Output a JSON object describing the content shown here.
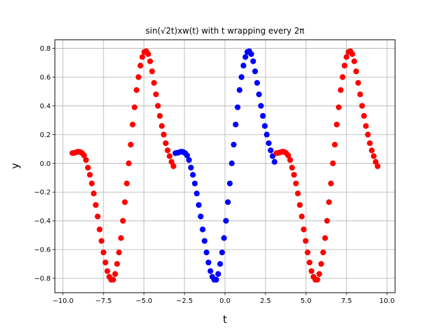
{
  "chart_data": {
    "type": "scatter",
    "title": "sin(√2t)xw(t) with t wrapping every 2π",
    "xlabel": "t",
    "ylabel": "y",
    "xlim": [
      -10.5,
      10.5
    ],
    "ylim": [
      -0.9,
      0.86
    ],
    "xticks": [
      -10.0,
      -7.5,
      -5.0,
      -2.5,
      0.0,
      2.5,
      5.0,
      7.5,
      10.0
    ],
    "xtick_labels": [
      "−10.0",
      "−7.5",
      "−5.0",
      "−2.5",
      "0.0",
      "2.5",
      "5.0",
      "7.5",
      "10.0"
    ],
    "yticks": [
      -0.8,
      -0.6,
      -0.4,
      -0.2,
      0.0,
      0.2,
      0.4,
      0.6,
      0.8
    ],
    "ytick_labels": [
      "−0.8",
      "−0.6",
      "−0.4",
      "−0.2",
      "0.0",
      "0.2",
      "0.4",
      "0.6",
      "0.8"
    ],
    "grid": true,
    "series": [
      {
        "color": "#ff0000",
        "x": [
          -9.42,
          -9.3,
          -9.18,
          -9.06,
          -8.94,
          -8.82,
          -8.7,
          -8.58,
          -8.46,
          -8.34,
          -8.22,
          -8.1,
          -7.98,
          -7.86,
          -7.74,
          -7.62,
          -7.5,
          -7.38,
          -7.26,
          -7.14,
          -7.02,
          -6.9,
          -6.78,
          -6.66,
          -6.54,
          -6.42,
          -6.3,
          -6.18,
          -6.06,
          -5.94,
          -5.82,
          -5.7,
          -5.58,
          -5.46,
          -5.34,
          -5.22,
          -5.1,
          -4.98,
          -4.86,
          -4.74,
          -4.62,
          -4.5,
          -4.38,
          -4.26,
          -4.14,
          -4.02,
          -3.9,
          -3.78,
          -3.66,
          -3.54,
          -3.42,
          -3.3,
          -3.18
        ],
        "y": [
          0.071,
          0.073,
          0.077,
          0.081,
          0.079,
          0.071,
          0.055,
          0.023,
          -0.03,
          -0.08,
          -0.14,
          -0.21,
          -0.29,
          -0.37,
          -0.46,
          -0.54,
          -0.62,
          -0.69,
          -0.75,
          -0.79,
          -0.81,
          -0.81,
          -0.77,
          -0.7,
          -0.62,
          -0.52,
          -0.4,
          -0.27,
          -0.14,
          0.0,
          0.13,
          0.27,
          0.39,
          0.51,
          0.6,
          0.68,
          0.74,
          0.775,
          0.78,
          0.76,
          0.71,
          0.64,
          0.56,
          0.48,
          0.4,
          0.33,
          0.26,
          0.2,
          0.14,
          0.09,
          0.05,
          0.01,
          -0.02
        ]
      },
      {
        "color": "#0000ff",
        "x": [
          -3.06,
          -2.94,
          -2.82,
          -2.7,
          -2.58,
          -2.46,
          -2.34,
          -2.22,
          -2.1,
          -1.98,
          -1.86,
          -1.74,
          -1.62,
          -1.5,
          -1.38,
          -1.26,
          -1.14,
          -1.02,
          -0.9,
          -0.78,
          -0.66,
          -0.54,
          -0.42,
          -0.3,
          -0.18,
          -0.06,
          0.06,
          0.18,
          0.3,
          0.42,
          0.54,
          0.66,
          0.78,
          0.9,
          1.02,
          1.14,
          1.26,
          1.38,
          1.5,
          1.62,
          1.74,
          1.86,
          1.98,
          2.1,
          2.22,
          2.34,
          2.46,
          2.58,
          2.7,
          2.82,
          2.94,
          3.06
        ],
        "y": [
          0.071,
          0.073,
          0.077,
          0.081,
          0.079,
          0.071,
          0.055,
          0.023,
          -0.03,
          -0.08,
          -0.14,
          -0.21,
          -0.29,
          -0.37,
          -0.46,
          -0.54,
          -0.62,
          -0.69,
          -0.75,
          -0.79,
          -0.81,
          -0.81,
          -0.77,
          -0.7,
          -0.62,
          -0.52,
          -0.4,
          -0.27,
          -0.14,
          0.0,
          0.13,
          0.27,
          0.39,
          0.51,
          0.6,
          0.68,
          0.74,
          0.775,
          0.78,
          0.76,
          0.71,
          0.64,
          0.56,
          0.48,
          0.4,
          0.33,
          0.26,
          0.2,
          0.14,
          0.09,
          0.05,
          0.01
        ]
      },
      {
        "color": "#ff0000",
        "x": [
          3.18,
          3.3,
          3.42,
          3.54,
          3.66,
          3.78,
          3.9,
          4.02,
          4.14,
          4.26,
          4.38,
          4.5,
          4.62,
          4.74,
          4.86,
          4.98,
          5.1,
          5.22,
          5.34,
          5.46,
          5.58,
          5.7,
          5.82,
          5.94,
          6.06,
          6.18,
          6.3,
          6.42,
          6.54,
          6.66,
          6.78,
          6.9,
          7.02,
          7.14,
          7.26,
          7.38,
          7.5,
          7.62,
          7.74,
          7.86,
          7.98,
          8.1,
          8.22,
          8.34,
          8.46,
          8.58,
          8.7,
          8.82,
          8.94,
          9.06,
          9.18,
          9.3,
          9.42
        ],
        "y": [
          0.071,
          0.073,
          0.077,
          0.081,
          0.079,
          0.071,
          0.055,
          0.023,
          -0.03,
          -0.08,
          -0.14,
          -0.21,
          -0.29,
          -0.37,
          -0.46,
          -0.54,
          -0.62,
          -0.69,
          -0.75,
          -0.79,
          -0.81,
          -0.81,
          -0.77,
          -0.7,
          -0.62,
          -0.52,
          -0.4,
          -0.27,
          -0.14,
          0.0,
          0.13,
          0.27,
          0.39,
          0.51,
          0.6,
          0.68,
          0.74,
          0.775,
          0.78,
          0.76,
          0.71,
          0.64,
          0.56,
          0.48,
          0.4,
          0.33,
          0.26,
          0.2,
          0.14,
          0.09,
          0.05,
          0.01,
          -0.02
        ]
      }
    ]
  }
}
